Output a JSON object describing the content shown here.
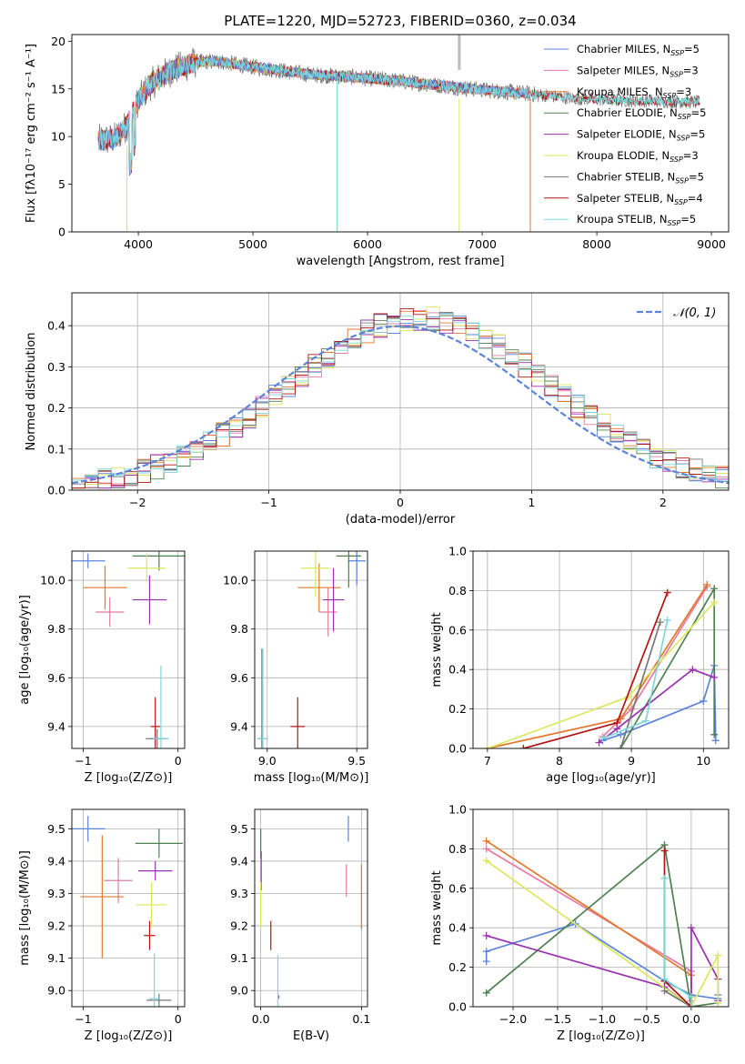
{
  "title": "PLATE=1220, MJD=52723, FIBERID=0360, z=0.034",
  "colors": {
    "Chabrier MILES": "#5b84d8",
    "Salpeter MILES": "#e57ba1",
    "Kroupa MILES": "#e3782b",
    "Chabrier ELODIE": "#4e8050",
    "Salpeter ELODIE": "#9a30b0",
    "Kroupa ELODIE": "#d9e85c",
    "Chabrier STELIB": "#777777",
    "Salpeter STELIB": "#b31414",
    "Kroupa STELIB": "#7ed6d9"
  },
  "chart_data": [
    {
      "id": "spectrum",
      "type": "line",
      "xlabel": "wavelength [Angstrom, rest frame]",
      "ylabel": "Flux [fλ10⁻¹⁷ erg cm⁻² s⁻¹ A⁻¹]",
      "xlim": [
        3420,
        9150
      ],
      "ylim": [
        0,
        20.7
      ],
      "xticks": [
        "4000",
        "5000",
        "6000",
        "7000",
        "8000",
        "9000"
      ],
      "yticks": [
        "0",
        "5",
        "10",
        "15",
        "20"
      ],
      "grid": false,
      "legend_position": "upper-right",
      "legend": [
        "Chabrier MILES, N$_{SSP}$=5",
        "Salpeter MILES, N$_{SSP}$=3",
        "Kroupa MILES, N$_{SSP}$=3",
        "Chabrier ELODIE, N$_{SSP}$=5",
        "Salpeter ELODIE, N$_{SSP}$=5",
        "Kroupa ELODIE, N$_{SSP}$=3",
        "Chabrier STELIB, N$_{SSP}$=5",
        "Salpeter STELIB, N$_{SSP}$=4",
        "Kroupa STELIB, N$_{SSP}$=5"
      ],
      "continuum": [
        [
          3700,
          9.6
        ],
        [
          3800,
          9.8
        ],
        [
          3900,
          11.2
        ],
        [
          4000,
          13.8
        ],
        [
          4100,
          15.4
        ],
        [
          4200,
          16.3
        ],
        [
          4300,
          17.0
        ],
        [
          4400,
          17.4
        ],
        [
          4500,
          17.8
        ],
        [
          4700,
          17.9
        ],
        [
          5000,
          17.3
        ],
        [
          5200,
          17.0
        ],
        [
          5500,
          16.5
        ],
        [
          5800,
          16.3
        ],
        [
          6000,
          16.1
        ],
        [
          6300,
          15.8
        ],
        [
          6600,
          15.4
        ],
        [
          7000,
          14.9
        ],
        [
          7400,
          14.5
        ],
        [
          7800,
          14.0
        ],
        [
          8200,
          13.8
        ],
        [
          8600,
          13.7
        ],
        [
          8900,
          13.6
        ]
      ],
      "models": [
        {
          "name": "Chabrier MILES",
          "range": [
            3650,
            7420
          ]
        },
        {
          "name": "Salpeter MILES",
          "range": [
            3650,
            7420
          ]
        },
        {
          "name": "Kroupa MILES",
          "range": [
            3650,
            7420
          ]
        },
        {
          "name": "Chabrier ELODIE",
          "range": [
            3900,
            6800
          ]
        },
        {
          "name": "Salpeter ELODIE",
          "range": [
            3900,
            6800
          ]
        },
        {
          "name": "Kroupa ELODIE",
          "range": [
            3900,
            6800
          ]
        },
        {
          "name": "Chabrier STELIB",
          "range": [
            3650,
            8900
          ]
        },
        {
          "name": "Salpeter STELIB",
          "range": [
            3650,
            8900
          ]
        },
        {
          "name": "Kroupa STELIB",
          "range": [
            3650,
            8900
          ]
        }
      ]
    },
    {
      "id": "residuals",
      "type": "histogram",
      "xlabel": "(data-model)/error",
      "ylabel": "Normed distribution",
      "xlim": [
        -2.5,
        2.5
      ],
      "ylim": [
        0,
        0.48
      ],
      "xticks": [
        "−2",
        "−1",
        "0",
        "1",
        "2"
      ],
      "yticks": [
        "0.0",
        "0.1",
        "0.2",
        "0.3",
        "0.4"
      ],
      "grid": true,
      "legend": [
        "𝒩(0, 1)"
      ],
      "legend_position": "upper-right",
      "bins": [
        -2.5,
        2.5,
        50
      ]
    },
    {
      "id": "age-vs-Z",
      "type": "scatter",
      "xlabel": "Z [log₁₀(Z/Z⊙)]",
      "ylabel": "age  [log₁₀(age/yr)]",
      "xlim": [
        -1.12,
        0.07
      ],
      "ylim": [
        9.31,
        10.12
      ],
      "xticks": [
        "−1",
        "0"
      ],
      "yticks": [
        "9.4",
        "9.6",
        "9.8",
        "10.0"
      ],
      "grid": true,
      "points": [
        {
          "name": "Chabrier MILES",
          "x": -0.95,
          "y": 10.08,
          "xerr": 0.18,
          "yerr": 0.03
        },
        {
          "name": "Salpeter MILES",
          "x": -0.72,
          "y": 9.87,
          "xerr": 0.15,
          "yerr": 0.06
        },
        {
          "name": "Kroupa MILES",
          "x": -0.77,
          "y": 9.97,
          "xerr": 0.23,
          "yerr": 0.09
        },
        {
          "name": "Chabrier ELODIE",
          "x": -0.2,
          "y": 10.1,
          "xerr": 0.28,
          "yerr": 0.06
        },
        {
          "name": "Salpeter ELODIE",
          "x": -0.3,
          "y": 9.92,
          "xerr": 0.18,
          "yerr": 0.1
        },
        {
          "name": "Kroupa ELODIE",
          "x": -0.33,
          "y": 10.05,
          "xerr": 0.2,
          "yerr": 0.06
        },
        {
          "name": "Chabrier STELIB",
          "x": -0.22,
          "y": 9.35,
          "xerr": 0.12,
          "yerr": 0.04
        },
        {
          "name": "Salpeter STELIB",
          "x": -0.24,
          "y": 9.4,
          "xerr": 0.05,
          "yerr": 0.12
        },
        {
          "name": "Kroupa STELIB",
          "x": -0.18,
          "y": 9.35,
          "xerr": 0.08,
          "yerr": 0.3
        }
      ]
    },
    {
      "id": "age-vs-mass",
      "type": "scatter",
      "xlabel": "mass [log₁₀(M/M⊙)]",
      "ylabel": "",
      "xlim": [
        8.93,
        9.56
      ],
      "ylim": [
        9.31,
        10.12
      ],
      "xticks": [
        "9.0",
        "9.5"
      ],
      "yticks": [
        "9.4",
        "9.6",
        "9.8",
        "10.0"
      ],
      "grid": true,
      "points": [
        {
          "name": "Chabrier MILES",
          "x": 9.5,
          "y": 10.08,
          "xerr": 0.05,
          "yerr": 0.1
        },
        {
          "name": "Salpeter MILES",
          "x": 9.34,
          "y": 9.87,
          "xerr": 0.05,
          "yerr": 0.1
        },
        {
          "name": "Kroupa MILES",
          "x": 9.29,
          "y": 9.97,
          "xerr": 0.12,
          "yerr": 0.1
        },
        {
          "name": "Chabrier ELODIE",
          "x": 9.455,
          "y": 10.1,
          "xerr": 0.07,
          "yerr": 0.13
        },
        {
          "name": "Salpeter ELODIE",
          "x": 9.37,
          "y": 9.92,
          "xerr": 0.06,
          "yerr": 0.13
        },
        {
          "name": "Kroupa ELODIE",
          "x": 9.27,
          "y": 10.05,
          "xerr": 0.08,
          "yerr": 0.12
        },
        {
          "name": "Chabrier STELIB",
          "x": 8.97,
          "y": 9.35,
          "xerr": 0.02,
          "yerr": 0.37
        },
        {
          "name": "Salpeter STELIB",
          "x": 9.17,
          "y": 9.4,
          "xerr": 0.04,
          "yerr": 0.12
        },
        {
          "name": "Kroupa STELIB",
          "x": 8.975,
          "y": 9.35,
          "xerr": 0.03,
          "yerr": 0.37
        }
      ]
    },
    {
      "id": "weight-vs-age",
      "type": "line",
      "xlabel": "age  [log₁₀(age/yr)]",
      "ylabel": "mass weight",
      "xlim": [
        6.8,
        10.35
      ],
      "ylim": [
        0,
        1.0
      ],
      "xticks": [
        "7",
        "8",
        "9",
        "10"
      ],
      "yticks": [
        "0.0",
        "0.2",
        "0.4",
        "0.6",
        "0.8",
        "1.0"
      ],
      "grid": true,
      "series": [
        {
          "name": "Chabrier MILES",
          "x": [
            8.6,
            8.85,
            10.0,
            10.15,
            10.17
          ],
          "y": [
            0.04,
            0.07,
            0.24,
            0.42,
            0.04
          ]
        },
        {
          "name": "Salpeter MILES",
          "x": [
            8.6,
            9.0,
            10.05
          ],
          "y": [
            0.06,
            0.2,
            0.82
          ]
        },
        {
          "name": "Kroupa MILES",
          "x": [
            7.0,
            8.85,
            10.05
          ],
          "y": [
            0.0,
            0.15,
            0.83
          ]
        },
        {
          "name": "Chabrier ELODIE",
          "x": [
            8.85,
            10.15,
            10.15
          ],
          "y": [
            0.0,
            0.81,
            0.07
          ]
        },
        {
          "name": "Salpeter ELODIE",
          "x": [
            8.55,
            8.8,
            9.85,
            10.15
          ],
          "y": [
            0.03,
            0.1,
            0.4,
            0.36
          ]
        },
        {
          "name": "Kroupa ELODIE",
          "x": [
            7.0,
            8.95,
            10.15
          ],
          "y": [
            0.0,
            0.26,
            0.74
          ]
        },
        {
          "name": "Chabrier STELIB",
          "x": [
            8.85,
            9.4
          ],
          "y": [
            0.0,
            0.64
          ]
        },
        {
          "name": "Salpeter STELIB",
          "x": [
            7.5,
            8.8,
            9.5
          ],
          "y": [
            0.0,
            0.13,
            0.79
          ]
        },
        {
          "name": "Kroupa STELIB",
          "x": [
            8.6,
            9.2,
            9.5
          ],
          "y": [
            0.05,
            0.14,
            0.65
          ]
        }
      ]
    },
    {
      "id": "mass-vs-Z",
      "type": "scatter",
      "xlabel": "Z [log₁₀(Z/Z⊙)]",
      "ylabel": "mass [log₁₀(M/M⊙)]",
      "xlim": [
        -1.12,
        0.07
      ],
      "ylim": [
        8.95,
        9.56
      ],
      "xticks": [
        "−1",
        "0"
      ],
      "yticks": [
        "9.0",
        "9.1",
        "9.2",
        "9.3",
        "9.4",
        "9.5"
      ],
      "grid": true,
      "points": [
        {
          "name": "Chabrier MILES",
          "x": -0.95,
          "y": 9.5,
          "xerr": 0.18,
          "yerr": 0.04
        },
        {
          "name": "Salpeter MILES",
          "x": -0.63,
          "y": 9.34,
          "xerr": 0.15,
          "yerr": 0.07
        },
        {
          "name": "Kroupa MILES",
          "x": -0.8,
          "y": 9.29,
          "xerr": 0.23,
          "yerr": 0.19
        },
        {
          "name": "Chabrier ELODIE",
          "x": -0.2,
          "y": 9.455,
          "xerr": 0.25,
          "yerr": 0.045
        },
        {
          "name": "Salpeter ELODIE",
          "x": -0.24,
          "y": 9.37,
          "xerr": 0.18,
          "yerr": 0.03
        },
        {
          "name": "Kroupa ELODIE",
          "x": -0.28,
          "y": 9.265,
          "xerr": 0.16,
          "yerr": 0.07
        },
        {
          "name": "Chabrier STELIB",
          "x": -0.2,
          "y": 8.97,
          "xerr": 0.13,
          "yerr": 0.02
        },
        {
          "name": "Salpeter STELIB",
          "x": -0.3,
          "y": 9.17,
          "xerr": 0.06,
          "yerr": 0.045
        },
        {
          "name": "Kroupa STELIB",
          "x": -0.25,
          "y": 8.975,
          "xerr": 0.06,
          "yerr": 0.14
        }
      ]
    },
    {
      "id": "mass-vs-EBV",
      "type": "scatter",
      "xlabel": "E(B-V)",
      "ylabel": "",
      "xlim": [
        -0.006,
        0.106
      ],
      "ylim": [
        8.95,
        9.56
      ],
      "xticks": [
        "0.0",
        "0.1"
      ],
      "yticks": [
        "9.0",
        "9.1",
        "9.2",
        "9.3",
        "9.4",
        "9.5"
      ],
      "grid": true,
      "points": [
        {
          "name": "Chabrier MILES",
          "x": 0.087,
          "y": 9.5,
          "xerr": 0,
          "yerr": 0.04
        },
        {
          "name": "Salpeter MILES",
          "x": 0.085,
          "y": 9.34,
          "xerr": 0,
          "yerr": 0.05
        },
        {
          "name": "Kroupa MILES",
          "x": 0.1,
          "y": 9.29,
          "xerr": 0,
          "yerr": 0.1
        },
        {
          "name": "Chabrier ELODIE",
          "x": 0.0,
          "y": 9.455,
          "xerr": 0,
          "yerr": 0.045
        },
        {
          "name": "Salpeter ELODIE",
          "x": 0.0005,
          "y": 9.37,
          "xerr": 0,
          "yerr": 0.06
        },
        {
          "name": "Kroupa ELODIE",
          "x": 0.0,
          "y": 9.265,
          "xerr": 0,
          "yerr": 0.07
        },
        {
          "name": "Chabrier STELIB",
          "x": 0.018,
          "y": 8.98,
          "xerr": 0,
          "yerr": 0.005
        },
        {
          "name": "Salpeter STELIB",
          "x": 0.01,
          "y": 9.17,
          "xerr": 0,
          "yerr": 0.045
        },
        {
          "name": "Kroupa STELIB",
          "x": 0.017,
          "y": 9.0,
          "xerr": 0,
          "yerr": 0.11
        }
      ]
    },
    {
      "id": "weight-vs-Z",
      "type": "line",
      "xlabel": "Z [log₁₀(Z/Z⊙)]",
      "ylabel": "mass weight",
      "xlim": [
        -2.45,
        0.42
      ],
      "ylim": [
        0,
        1.0
      ],
      "xticks": [
        "−2.0",
        "−1.5",
        "−1.0",
        "−0.5",
        "0.0"
      ],
      "yticks": [
        "0.0",
        "0.2",
        "0.4",
        "0.6",
        "0.8",
        "1.0"
      ],
      "grid": true,
      "series": [
        {
          "name": "Chabrier MILES",
          "x": [
            -2.3,
            -2.3,
            -1.3,
            -0.3,
            0.0,
            0.3,
            0.3
          ],
          "y": [
            0.23,
            0.28,
            0.42,
            0.13,
            0.06,
            0.04,
            0.06
          ]
        },
        {
          "name": "Salpeter MILES",
          "x": [
            -2.3,
            0.0,
            0.0
          ],
          "y": [
            0.8,
            0.18,
            0.03
          ]
        },
        {
          "name": "Kroupa MILES",
          "x": [
            -2.3,
            0.0,
            0.0
          ],
          "y": [
            0.84,
            0.16,
            0.0
          ]
        },
        {
          "name": "Chabrier ELODIE",
          "x": [
            -2.3,
            -0.3,
            0.0,
            0.3
          ],
          "y": [
            0.07,
            0.82,
            0.0,
            0.02
          ]
        },
        {
          "name": "Salpeter ELODIE",
          "x": [
            -2.3,
            -0.3,
            0.0,
            0.0,
            0.3,
            0.3
          ],
          "y": [
            0.36,
            0.1,
            0.0,
            0.4,
            0.14,
            0.03
          ]
        },
        {
          "name": "Kroupa ELODIE",
          "x": [
            -2.3,
            0.0,
            0.3,
            0.3
          ],
          "y": [
            0.74,
            0.0,
            0.26,
            0.02
          ]
        },
        {
          "name": "Chabrier STELIB",
          "x": [
            -0.3,
            0.0
          ],
          "y": [
            0.08,
            0.0
          ]
        },
        {
          "name": "Salpeter STELIB",
          "x": [
            -0.3,
            -0.3,
            0.0
          ],
          "y": [
            0.79,
            0.13,
            0.0
          ]
        },
        {
          "name": "Kroupa STELIB",
          "x": [
            -0.3,
            -0.3,
            0.0,
            0.0
          ],
          "y": [
            0.65,
            0.14,
            0.05,
            0.0
          ]
        }
      ]
    }
  ]
}
